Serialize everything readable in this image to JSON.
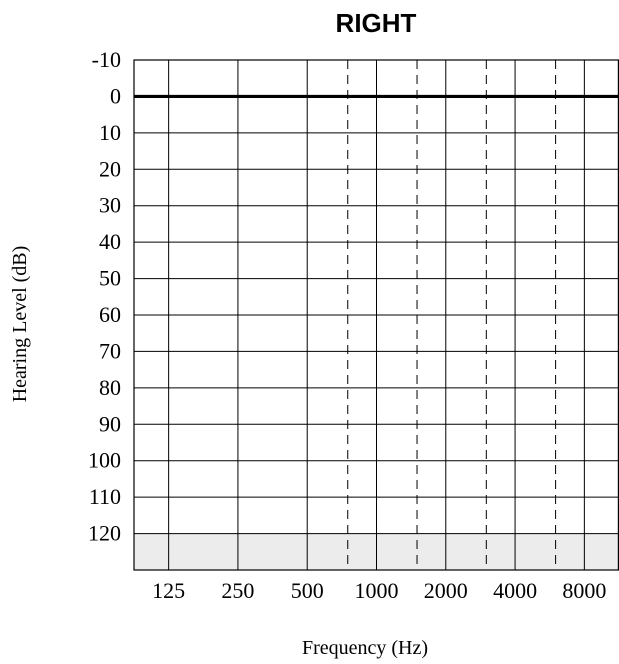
{
  "chart_data": {
    "type": "audiogram",
    "title": "RIGHT",
    "xlabel": "Frequency (Hz)",
    "ylabel": "Hearing Level (dB)",
    "x_ticks": [
      "125",
      "250",
      "500",
      "1000",
      "2000",
      "4000",
      "8000"
    ],
    "inter_octave_frequencies": [
      750,
      1500,
      3000,
      6000
    ],
    "y_ticks": [
      -10,
      0,
      10,
      20,
      30,
      40,
      50,
      60,
      70,
      80,
      90,
      100,
      110,
      120
    ],
    "ylim": [
      -10,
      130
    ],
    "y_inverted": true,
    "reference_line": 0,
    "shaded_band": [
      120,
      130
    ],
    "grid": true,
    "series": []
  },
  "colors": {
    "grid": "#000000",
    "reference_line": "#000000",
    "shade": "#ececec"
  }
}
